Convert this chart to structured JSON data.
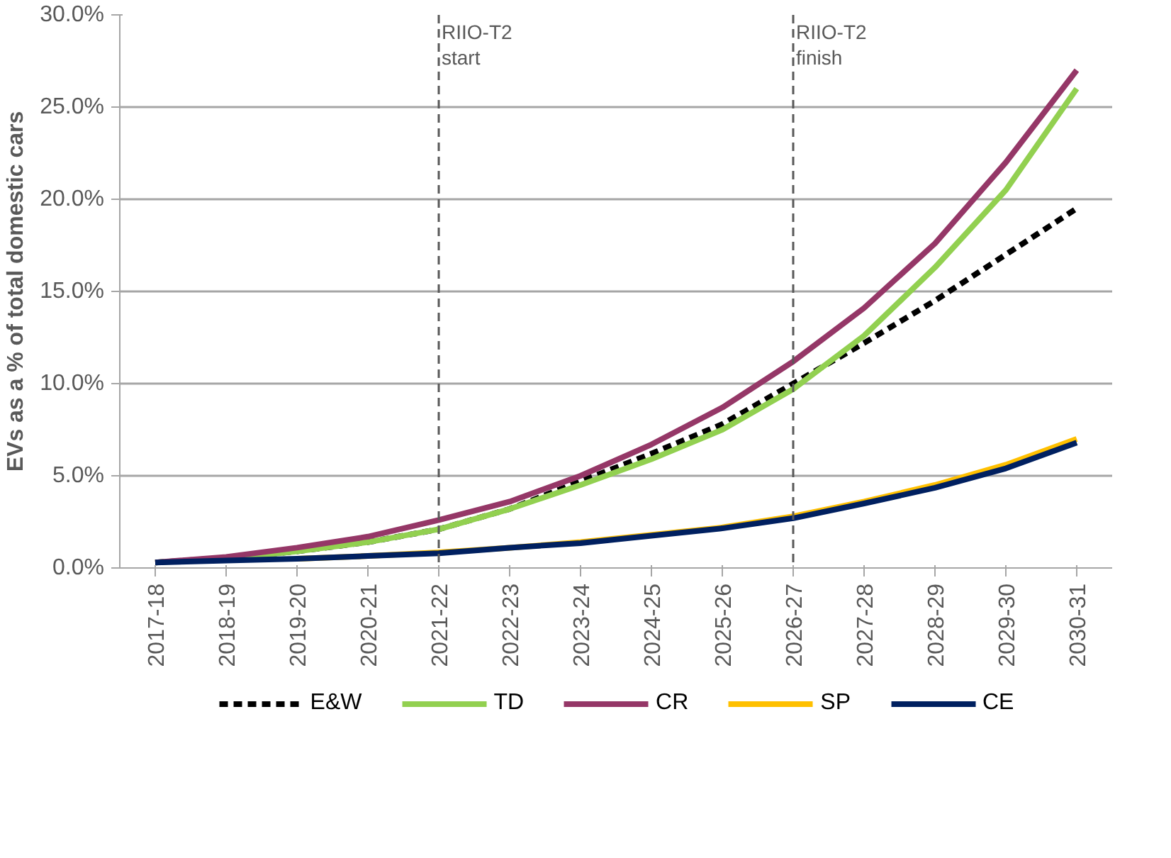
{
  "chart_data": {
    "type": "line",
    "ylabel": "EVs as a % of total domestic cars",
    "categories": [
      "2017-18",
      "2018-19",
      "2019-20",
      "2020-21",
      "2021-22",
      "2022-23",
      "2023-24",
      "2024-25",
      "2025-26",
      "2026-27",
      "2027-28",
      "2028-29",
      "2029-30",
      "2030-31"
    ],
    "series": [
      {
        "name": "E&W",
        "color": "#000000",
        "line_style": "dashed",
        "values": [
          0.3,
          0.55,
          0.9,
          1.4,
          2.1,
          3.2,
          4.7,
          6.2,
          7.8,
          10.0,
          12.2,
          14.5,
          17.0,
          19.5
        ]
      },
      {
        "name": "TD",
        "color": "#92d050",
        "values": [
          0.3,
          0.5,
          0.9,
          1.4,
          2.1,
          3.2,
          4.5,
          5.9,
          7.5,
          9.7,
          12.6,
          16.3,
          20.5,
          26.0
        ]
      },
      {
        "name": "CR",
        "color": "#953767",
        "values": [
          0.3,
          0.6,
          1.1,
          1.7,
          2.6,
          3.6,
          5.0,
          6.7,
          8.7,
          11.2,
          14.1,
          17.6,
          22.0,
          27.0
        ]
      },
      {
        "name": "SP",
        "color": "#ffc000",
        "values": [
          null,
          null,
          0.5,
          0.65,
          0.85,
          1.1,
          1.4,
          1.8,
          2.2,
          2.8,
          3.6,
          4.5,
          5.6,
          7.0
        ]
      },
      {
        "name": "CE",
        "color": "#002060",
        "values": [
          0.3,
          0.4,
          0.5,
          0.65,
          0.8,
          1.1,
          1.35,
          1.75,
          2.15,
          2.7,
          3.5,
          4.35,
          5.4,
          6.8
        ]
      }
    ],
    "ylim": [
      0,
      30
    ],
    "yticks": [
      {
        "value": 0,
        "label": "0.0%"
      },
      {
        "value": 5,
        "label": "5.0%"
      },
      {
        "value": 10,
        "label": "10.0%"
      },
      {
        "value": 15,
        "label": "15.0%"
      },
      {
        "value": 20,
        "label": "20.0%"
      },
      {
        "value": 25,
        "label": "25.0%"
      },
      {
        "value": 30,
        "label": "30.0%"
      }
    ],
    "ref_lines": [
      {
        "axis": "x",
        "value": "2021-22",
        "label": "RIIO-T2\nstart",
        "color": "#595959",
        "line_style": "dashed"
      },
      {
        "axis": "x",
        "value": "2026-27",
        "label": "RIIO-T2\nfinish",
        "color": "#595959",
        "line_style": "dashed"
      }
    ],
    "grid": "y",
    "legend": "bottom",
    "marker": "none",
    "line_style": "solid"
  }
}
